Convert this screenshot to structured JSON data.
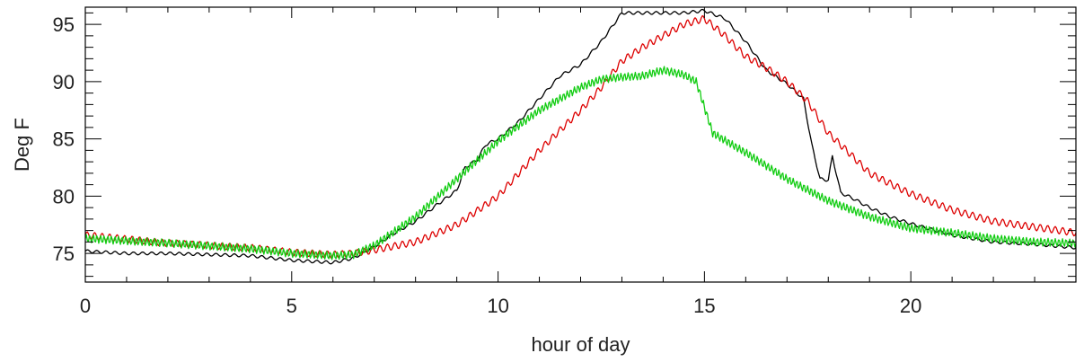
{
  "chart_data": {
    "type": "line",
    "xlabel": "hour of day",
    "ylabel": "Deg F",
    "xlim": [
      0,
      24
    ],
    "ylim": [
      72.5,
      96.5
    ],
    "xticks": [
      0,
      5,
      10,
      15,
      20
    ],
    "xtick_labels": [
      "0",
      "5",
      "10",
      "15",
      "20"
    ],
    "yticks": [
      75,
      80,
      85,
      90,
      95
    ],
    "ytick_labels": [
      "75",
      "80",
      "85",
      "90",
      "95"
    ],
    "grid": false,
    "series": [
      {
        "color": "#000000",
        "x": [
          0,
          1,
          2,
          3,
          4,
          5,
          6,
          6.5,
          7,
          7.5,
          8,
          8.5,
          9,
          9.2,
          9.5,
          9.7,
          10,
          10.5,
          11,
          11.5,
          12,
          12.5,
          13,
          13.5,
          14,
          14.5,
          15,
          15.5,
          16,
          16.5,
          17,
          17.4,
          17.6,
          17.8,
          18,
          18.1,
          18.3,
          18.6,
          19,
          19.5,
          20,
          21,
          22,
          23,
          24
        ],
        "y": [
          75.2,
          75.0,
          75.0,
          74.9,
          74.8,
          74.4,
          74.2,
          74.6,
          75.6,
          76.8,
          77.8,
          79.2,
          80.5,
          82.5,
          83.2,
          84.5,
          85.0,
          86.5,
          88.5,
          90.5,
          91.5,
          93.5,
          96.0,
          96.0,
          96.0,
          96.0,
          96.2,
          95.5,
          93.5,
          91.0,
          89.8,
          88.5,
          84.5,
          81.5,
          81.4,
          83.5,
          80.3,
          79.8,
          79.0,
          78.2,
          77.6,
          76.6,
          76.0,
          75.8,
          75.5
        ]
      },
      {
        "color": "#dd0000",
        "x": [
          0,
          2,
          4,
          5,
          6,
          6.5,
          7,
          8,
          9,
          10,
          11,
          12,
          12.5,
          13,
          13.5,
          14,
          14.5,
          15,
          15.5,
          16,
          16.5,
          17,
          17.5,
          18,
          18.5,
          19,
          20,
          21,
          22,
          23,
          24
        ],
        "y": [
          76.6,
          75.9,
          75.5,
          75.1,
          74.9,
          75.0,
          75.3,
          76.0,
          77.5,
          80.0,
          84.0,
          87.5,
          89.5,
          91.8,
          93.0,
          94.0,
          95.0,
          95.5,
          94.0,
          92.2,
          91.2,
          90.0,
          88.3,
          85.5,
          83.8,
          82.0,
          80.2,
          78.8,
          77.8,
          77.3,
          76.8
        ]
      },
      {
        "color": "#11cc11",
        "x": [
          0,
          2,
          4,
          5,
          6,
          6.5,
          7,
          8,
          9,
          10,
          11,
          12,
          12.5,
          13,
          13.5,
          14,
          14.5,
          14.8,
          15.2,
          16,
          17,
          18,
          19,
          20,
          21,
          22,
          23,
          24
        ],
        "y": [
          76.3,
          75.9,
          75.4,
          75.0,
          74.8,
          74.9,
          75.7,
          78.2,
          81.5,
          84.8,
          87.5,
          89.5,
          90.2,
          90.4,
          90.5,
          91.0,
          90.6,
          90.0,
          85.5,
          83.8,
          81.5,
          79.6,
          78.2,
          77.2,
          76.8,
          76.3,
          76.0,
          75.9
        ]
      }
    ]
  }
}
